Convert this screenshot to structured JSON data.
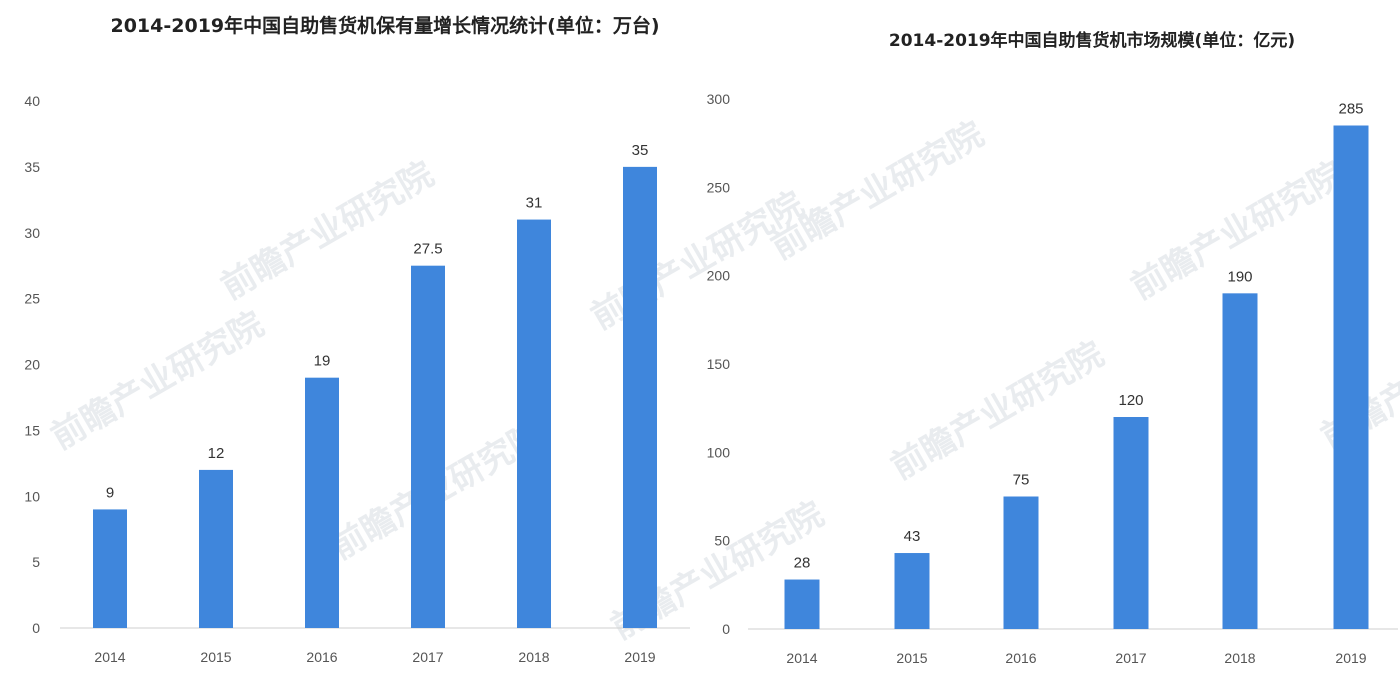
{
  "watermark": "前瞻产业研究院",
  "bar_color": "#3f86dc",
  "chart_data": [
    {
      "type": "bar",
      "title": "2014-2019年中国自助售货机保有量增长情况统计(单位：万台)",
      "categories": [
        "2014",
        "2015",
        "2016",
        "2017",
        "2018",
        "2019"
      ],
      "values": [
        9,
        12,
        19,
        27.5,
        31,
        35
      ],
      "data_labels": [
        "9",
        "12",
        "19",
        "27.5",
        "31",
        "35"
      ],
      "yticks": [
        0,
        5,
        10,
        15,
        20,
        25,
        30,
        35,
        40
      ],
      "ylim": [
        0,
        40
      ],
      "xlabel": "",
      "ylabel": "",
      "grid": false
    },
    {
      "type": "bar",
      "title": "2014-2019年中国自助售货机市场规模(单位：亿元)",
      "categories": [
        "2014",
        "2015",
        "2016",
        "2017",
        "2018",
        "2019"
      ],
      "values": [
        28,
        43,
        75,
        120,
        190,
        285
      ],
      "data_labels": [
        "28",
        "43",
        "75",
        "120",
        "190",
        "285"
      ],
      "yticks": [
        0,
        50,
        100,
        150,
        200,
        250,
        300
      ],
      "ylim": [
        0,
        300
      ],
      "xlabel": "",
      "ylabel": "",
      "grid": false
    }
  ]
}
